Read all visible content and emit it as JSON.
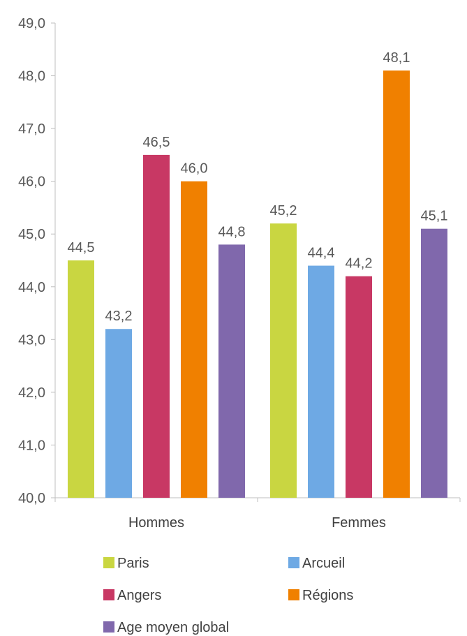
{
  "chart_data": {
    "type": "bar",
    "categories": [
      "Hommes",
      "Femmes"
    ],
    "series": [
      {
        "name": "Paris",
        "values": [
          44.5,
          45.2
        ],
        "labels": [
          "44,5",
          "45,2"
        ],
        "color": "#c9d641"
      },
      {
        "name": "Arcueil",
        "values": [
          43.2,
          44.4
        ],
        "labels": [
          "43,2",
          "44,4"
        ],
        "color": "#6ea9e4"
      },
      {
        "name": "Angers",
        "values": [
          46.5,
          44.2
        ],
        "labels": [
          "46,5",
          "44,2"
        ],
        "color": "#c83864"
      },
      {
        "name": "Régions",
        "values": [
          46.0,
          48.1
        ],
        "labels": [
          "46,0",
          "48,1"
        ],
        "color": "#f08000"
      },
      {
        "name": "Age moyen global",
        "values": [
          44.8,
          45.1
        ],
        "labels": [
          "44,8",
          "45,1"
        ],
        "color": "#8068ac"
      }
    ],
    "ylim": [
      40,
      49
    ],
    "y_ticks": [
      40,
      41,
      42,
      43,
      44,
      45,
      46,
      47,
      48,
      49
    ],
    "y_tick_labels": [
      "40,0",
      "41,0",
      "42,0",
      "43,0",
      "44,0",
      "45,0",
      "46,0",
      "47,0",
      "48,0",
      "49,0"
    ],
    "grid": false,
    "legend": "bottom",
    "title": "",
    "xlabel": "",
    "ylabel": ""
  }
}
